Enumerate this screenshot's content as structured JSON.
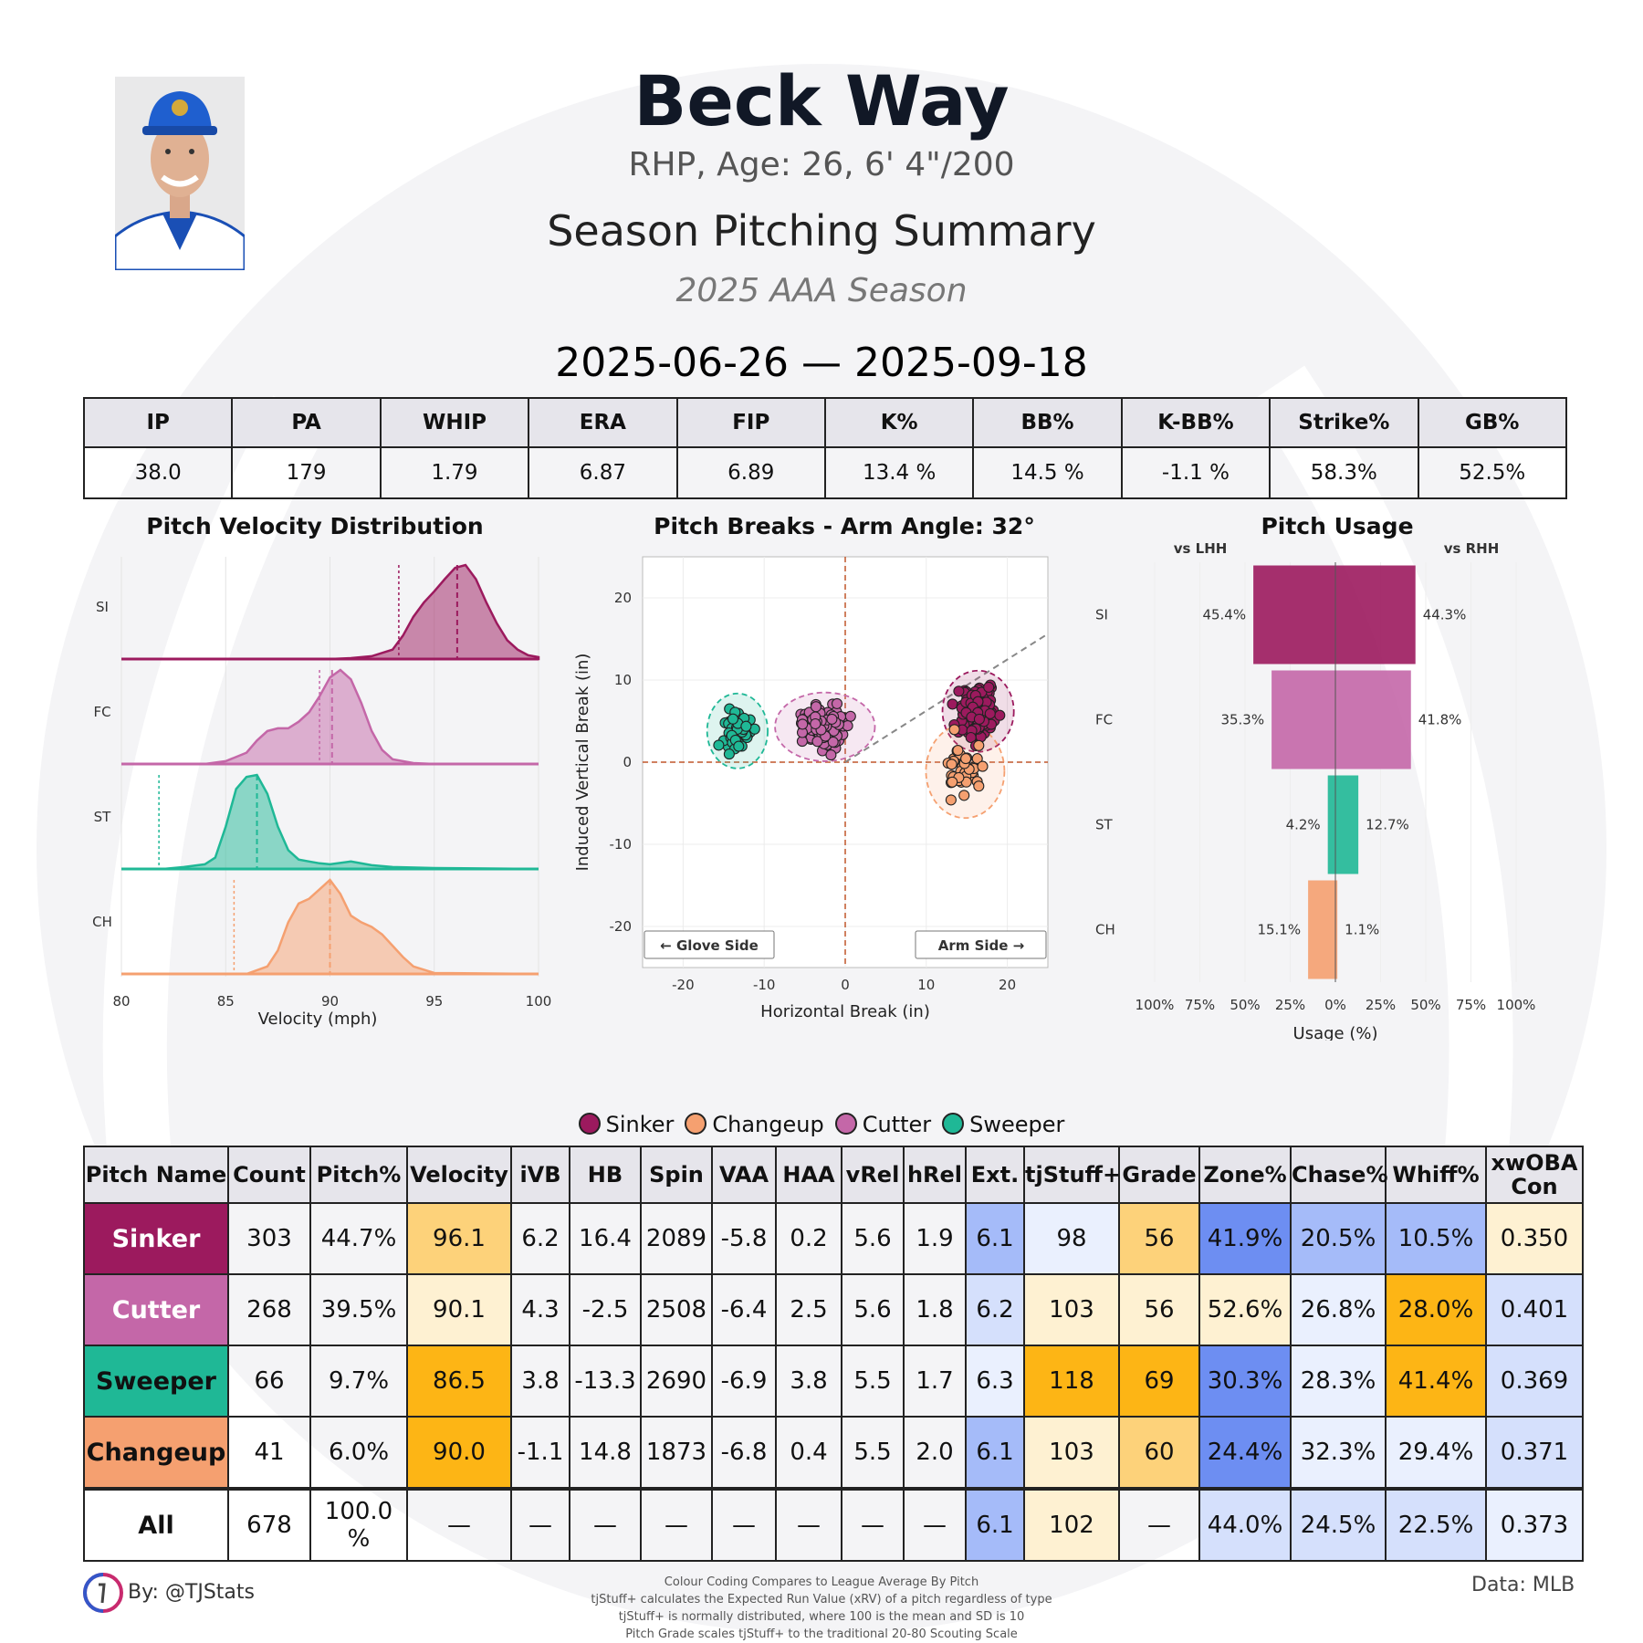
{
  "header": {
    "name": "Beck Way",
    "bio": "RHP, Age: 26, 6' 4\"/200",
    "subtitle": "Season Pitching Summary",
    "season": "2025 AAA Season",
    "date_range": "2025-06-26 — 2025-09-18"
  },
  "season_stats": {
    "headers": [
      "IP",
      "PA",
      "WHIP",
      "ERA",
      "FIP",
      "K%",
      "BB%",
      "K-BB%",
      "Strike%",
      "GB%"
    ],
    "values": [
      "38.0",
      "179",
      "1.79",
      "6.87",
      "6.89",
      "13.4 %",
      "14.5 %",
      "-1.1 %",
      "58.3%",
      "52.5%"
    ]
  },
  "colors": {
    "SI": "#9c1a5e",
    "FC": "#c467a8",
    "ST": "#1fb896",
    "CH": "#f5a070",
    "header_bg": "#e6e5eb",
    "gold_strong": "#fdb515",
    "gold_mid": "#fdd27a",
    "gold_light": "#fef1d2",
    "blue_strong": "#6d8ef2",
    "blue_mid": "#a5bbf9",
    "blue_light": "#d5e0fc",
    "blue_faint": "#eaf0fe"
  },
  "chart_data": [
    {
      "type": "area",
      "title": "Pitch Velocity Distribution",
      "xlabel": "Velocity (mph)",
      "ylabel": "",
      "xlim": [
        80,
        100
      ],
      "xticks": [
        "80",
        "85",
        "90",
        "95",
        "100"
      ],
      "series": [
        {
          "name": "SI",
          "mean": 96.1,
          "league_mean": 93.3,
          "x": [
            80,
            90,
            91,
            92,
            93,
            93.5,
            94,
            94.5,
            95,
            95.5,
            96,
            96.5,
            97,
            97.5,
            98,
            98.5,
            99,
            99.5,
            100
          ],
          "y": [
            0,
            0,
            0.01,
            0.03,
            0.1,
            0.25,
            0.45,
            0.6,
            0.72,
            0.85,
            0.97,
            1.0,
            0.85,
            0.6,
            0.38,
            0.2,
            0.1,
            0.04,
            0.02
          ]
        },
        {
          "name": "FC",
          "mean": 90.1,
          "league_mean": 89.5,
          "x": [
            80,
            84,
            85,
            86,
            86.5,
            87,
            87.5,
            88,
            88.5,
            89,
            89.5,
            90,
            90.5,
            91,
            91.5,
            92,
            92.5,
            93,
            94,
            95,
            100
          ],
          "y": [
            0,
            0,
            0.03,
            0.12,
            0.25,
            0.35,
            0.38,
            0.38,
            0.45,
            0.55,
            0.72,
            0.92,
            1.0,
            0.9,
            0.65,
            0.35,
            0.15,
            0.05,
            0.01,
            0,
            0
          ]
        },
        {
          "name": "ST",
          "mean": 86.5,
          "league_mean": 81.8,
          "x": [
            80,
            82,
            83,
            84,
            84.5,
            85,
            85.5,
            86,
            86.5,
            87,
            87.5,
            88,
            88.5,
            89,
            89.5,
            90,
            91,
            92,
            93,
            95,
            100
          ],
          "y": [
            0,
            0,
            0.02,
            0.05,
            0.12,
            0.45,
            0.85,
            0.98,
            1.0,
            0.8,
            0.45,
            0.2,
            0.1,
            0.08,
            0.06,
            0.05,
            0.08,
            0.04,
            0.02,
            0.01,
            0
          ]
        },
        {
          "name": "CH",
          "mean": 90.0,
          "league_mean": 85.4,
          "x": [
            80,
            86,
            87,
            87.5,
            88,
            88.5,
            89,
            89.5,
            90,
            90.5,
            91,
            91.5,
            92,
            92.5,
            93,
            93.5,
            94,
            95,
            100
          ],
          "y": [
            0,
            0,
            0.08,
            0.25,
            0.55,
            0.75,
            0.8,
            0.9,
            1.0,
            0.85,
            0.62,
            0.55,
            0.5,
            0.42,
            0.3,
            0.18,
            0.08,
            0.01,
            0
          ]
        }
      ]
    },
    {
      "type": "scatter",
      "title": "Pitch Breaks - Arm Angle: 32°",
      "xlabel": "Horizontal Break (in)",
      "ylabel": "Induced Vertical Break (in)",
      "xlim": [
        -25,
        25
      ],
      "ylim": [
        -25,
        25
      ],
      "xticks": [
        "-20",
        "-10",
        "0",
        "10",
        "20"
      ],
      "yticks": [
        "20",
        "10",
        "0",
        "-10",
        "-20"
      ],
      "arm_angle_deg": 32,
      "annotations": [
        "← Glove Side",
        "Arm Side →"
      ],
      "series": [
        {
          "name": "SI",
          "center": [
            16.4,
            6.2
          ],
          "spread": [
            2.0,
            2.6
          ],
          "count": 140
        },
        {
          "name": "FC",
          "center": [
            -2.5,
            4.3
          ],
          "spread": [
            2.8,
            2.2
          ],
          "count": 120
        },
        {
          "name": "ST",
          "center": [
            -13.3,
            3.8
          ],
          "spread": [
            1.7,
            2.4
          ],
          "count": 50
        },
        {
          "name": "CH",
          "center": [
            14.8,
            -1.1
          ],
          "spread": [
            2.2,
            3.0
          ],
          "count": 40
        }
      ]
    },
    {
      "type": "bar",
      "title": "Pitch Usage",
      "xlabel": "Usage (%)",
      "left_label": "vs LHH",
      "right_label": "vs RHH",
      "categories": [
        "SI",
        "FC",
        "ST",
        "CH"
      ],
      "xticks": [
        "100%",
        "75%",
        "50%",
        "25%",
        "0%",
        "25%",
        "50%",
        "75%",
        "100%"
      ],
      "series": [
        {
          "name": "vs LHH",
          "values": [
            45.4,
            35.3,
            4.2,
            15.1
          ]
        },
        {
          "name": "vs RHH",
          "values": [
            44.3,
            41.8,
            12.7,
            1.1
          ]
        }
      ],
      "value_labels_lhh": [
        "45.4%",
        "35.3%",
        "4.2%",
        "15.1%"
      ],
      "value_labels_rhh": [
        "44.3%",
        "41.8%",
        "12.7%",
        "1.1%"
      ]
    }
  ],
  "legend": [
    "Sinker",
    "Changeup",
    "Cutter",
    "Sweeper"
  ],
  "pitch_table": {
    "headers": [
      "Pitch Name",
      "Count",
      "Pitch%",
      "Velocity",
      "iVB",
      "HB",
      "Spin",
      "VAA",
      "HAA",
      "vRel",
      "hRel",
      "Ext.",
      "tjStuff+",
      "Grade",
      "Zone%",
      "Chase%",
      "Whiff%",
      "xwOBA Con"
    ],
    "rows": [
      {
        "name": "Sinker",
        "code": "SI",
        "cells": [
          "303",
          "44.7%",
          "96.1",
          "6.2",
          "16.4",
          "2089",
          "-5.8",
          "0.2",
          "5.6",
          "1.9",
          "6.1",
          "98",
          "56",
          "41.9%",
          "20.5%",
          "10.5%",
          "0.350"
        ],
        "shades": [
          "",
          "",
          "gold_mid",
          "",
          "",
          "",
          "",
          "",
          "",
          "",
          "blue_mid",
          "blue_faint",
          "gold_mid",
          "blue_strong",
          "blue_mid",
          "blue_mid",
          "gold_light"
        ]
      },
      {
        "name": "Cutter",
        "code": "FC",
        "cells": [
          "268",
          "39.5%",
          "90.1",
          "4.3",
          "-2.5",
          "2508",
          "-6.4",
          "2.5",
          "5.6",
          "1.8",
          "6.2",
          "103",
          "56",
          "52.6%",
          "26.8%",
          "28.0%",
          "0.401"
        ],
        "shades": [
          "",
          "",
          "gold_light",
          "",
          "",
          "",
          "",
          "",
          "",
          "",
          "blue_light",
          "gold_light",
          "gold_light",
          "gold_light",
          "blue_faint",
          "gold_strong",
          "blue_light"
        ]
      },
      {
        "name": "Sweeper",
        "code": "ST",
        "cells": [
          "66",
          "9.7%",
          "86.5",
          "3.8",
          "-13.3",
          "2690",
          "-6.9",
          "3.8",
          "5.5",
          "1.7",
          "6.3",
          "118",
          "69",
          "30.3%",
          "28.3%",
          "41.4%",
          "0.369"
        ],
        "shades": [
          "",
          "",
          "gold_strong",
          "",
          "",
          "",
          "",
          "",
          "",
          "",
          "blue_faint",
          "gold_strong",
          "gold_strong",
          "blue_strong",
          "blue_faint",
          "gold_strong",
          "blue_light"
        ]
      },
      {
        "name": "Changeup",
        "code": "CH",
        "cells": [
          "41",
          "6.0%",
          "90.0",
          "-1.1",
          "14.8",
          "1873",
          "-6.8",
          "0.4",
          "5.5",
          "2.0",
          "6.1",
          "103",
          "60",
          "24.4%",
          "32.3%",
          "29.4%",
          "0.371"
        ],
        "shades": [
          "",
          "",
          "gold_strong",
          "",
          "",
          "",
          "",
          "",
          "",
          "",
          "blue_mid",
          "gold_light",
          "gold_mid",
          "blue_strong",
          "blue_faint",
          "blue_faint",
          "blue_light"
        ]
      },
      {
        "name": "All",
        "code": "ALL",
        "cells": [
          "678",
          "100.0 %",
          "—",
          "—",
          "—",
          "—",
          "—",
          "—",
          "—",
          "—",
          "6.1",
          "102",
          "—",
          "44.0%",
          "24.5%",
          "22.5%",
          "0.373"
        ],
        "shades": [
          "",
          "",
          "",
          "",
          "",
          "",
          "",
          "",
          "",
          "",
          "blue_mid",
          "gold_light",
          "",
          "blue_light",
          "blue_light",
          "blue_light",
          "blue_faint"
        ]
      }
    ]
  },
  "footer": {
    "by": "By: @TJStats",
    "data": "Data: MLB",
    "notes": [
      "Colour Coding Compares to League Average By Pitch",
      "tjStuff+ calculates the Expected Run Value (xRV) of a pitch regardless of type",
      "tjStuff+ is normally distributed, where 100 is the mean and SD is 10",
      "Pitch Grade scales tjStuff+ to the traditional 20-80 Scouting Scale"
    ]
  }
}
